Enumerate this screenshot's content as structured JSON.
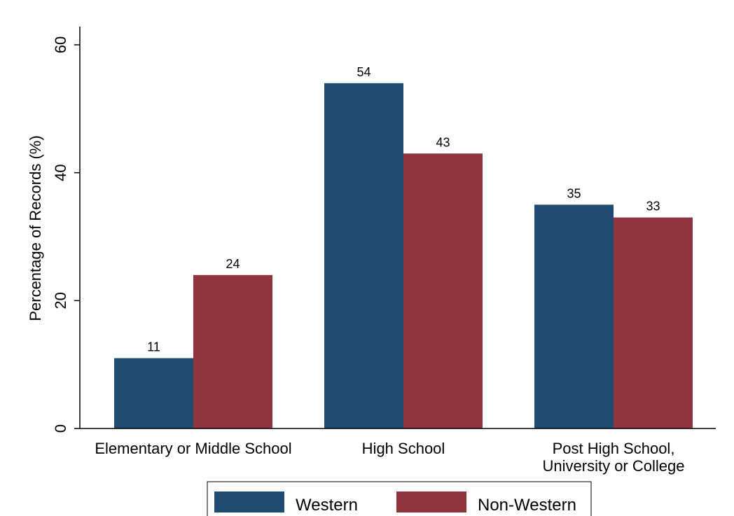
{
  "chart_data": {
    "type": "bar",
    "categories": [
      [
        "Elementary or Middle School"
      ],
      [
        "High School"
      ],
      [
        "Post High School,",
        "University or College"
      ]
    ],
    "series": [
      {
        "name": "Western",
        "values": [
          11,
          54,
          35
        ],
        "color": "#1f4a72"
      },
      {
        "name": "Non-Western",
        "values": [
          24,
          43,
          33
        ],
        "color": "#90353e"
      }
    ],
    "ylabel": "Percentage of Records (%)",
    "xlabel": "",
    "ylim": [
      0,
      60
    ],
    "yticks": [
      0,
      20,
      40,
      60
    ],
    "grid": false,
    "legend_position": "bottom",
    "data_labels": true
  }
}
